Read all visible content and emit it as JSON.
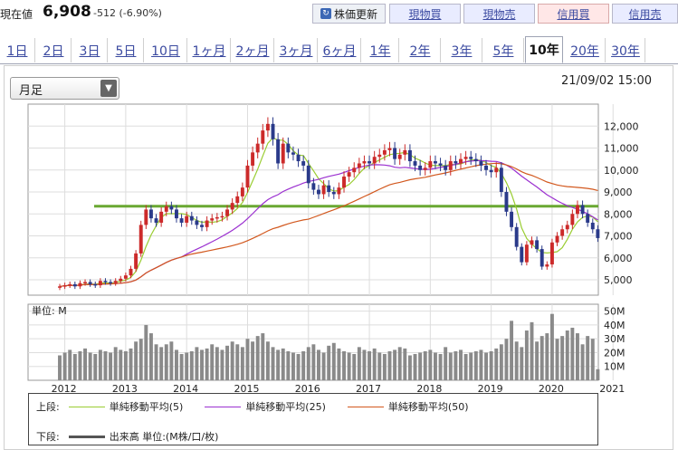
{
  "quote": {
    "label": "現在値",
    "price": "6,908",
    "change": "-512 (-6.90%)"
  },
  "buttons": {
    "refresh": "株価更新",
    "spot_buy": "現物買",
    "spot_sell": "現物売",
    "margin_buy": "信用買",
    "margin_sell": "信用売"
  },
  "tabs": [
    "1日",
    "2日",
    "3日",
    "5日",
    "10日",
    "1ヶ月",
    "2ヶ月",
    "3ヶ月",
    "6ヶ月",
    "1年",
    "2年",
    "3年",
    "5年",
    "10年",
    "20年",
    "30年"
  ],
  "active_tab": "10年",
  "period_select": "月足",
  "datetime": "21/09/02 15:00",
  "volume_unit": "単位: M",
  "colors": {
    "up": "#cc2a2a",
    "down": "#2a3a8a",
    "ma5": "#9acd32",
    "ma25": "#9b30d0",
    "ma50": "#d2581e",
    "resistance": "#6aa832",
    "volume": "#8a8a8a"
  },
  "legend": {
    "upper_label": "上段:",
    "lower_label": "下段:",
    "ma5": "単純移動平均(5)",
    "ma25": "単純移動平均(25)",
    "ma50": "単純移動平均(50)",
    "volume": "出来高 単位:(M株/口/枚)"
  },
  "chart_data": {
    "type": "candlestick",
    "interval": "monthly",
    "x_axis_labels": [
      "2012",
      "2013",
      "2014",
      "2015",
      "2016",
      "2017",
      "2018",
      "2019",
      "2020",
      "2021"
    ],
    "price_ticks": [
      5000,
      6000,
      7000,
      8000,
      9000,
      10000,
      11000,
      12000
    ],
    "price_tick_labels": [
      "5,000",
      "6,000",
      "7,000",
      "8,000",
      "9,000",
      "10,000",
      "11,000",
      "12,000"
    ],
    "price_range": [
      4300,
      13000
    ],
    "resistance_level": 8350,
    "volume_ticks": [
      10,
      20,
      30,
      40,
      50
    ],
    "volume_tick_labels": [
      "10M",
      "20M",
      "30M",
      "40M",
      "50M"
    ],
    "volume_range": [
      0,
      55
    ],
    "closes": [
      4700,
      4750,
      4800,
      4700,
      4850,
      4900,
      4800,
      4750,
      4950,
      4900,
      4850,
      4950,
      5050,
      5200,
      5500,
      6200,
      7500,
      8200,
      7800,
      7600,
      8100,
      8350,
      8200,
      7800,
      7600,
      7900,
      7700,
      7500,
      7400,
      7700,
      7800,
      7850,
      7900,
      8200,
      8500,
      8800,
      9200,
      10200,
      10800,
      11200,
      11800,
      12100,
      11400,
      10300,
      11200,
      10800,
      10700,
      10400,
      10200,
      9400,
      9100,
      8900,
      9300,
      9000,
      8900,
      9200,
      9700,
      9900,
      10100,
      10300,
      10400,
      10300,
      10600,
      10700,
      10900,
      11000,
      10500,
      10700,
      10900,
      10400,
      10200,
      10000,
      10100,
      10400,
      10300,
      10200,
      10000,
      10400,
      10300,
      10500,
      10600,
      10500,
      10400,
      10200,
      10000,
      9900,
      10100,
      9000,
      8100,
      7400,
      6500,
      5800,
      6600,
      6800,
      6400,
      5600,
      5700,
      6700,
      7000,
      7300,
      7500,
      8000,
      8400,
      8000,
      7600,
      7300,
      6900
    ],
    "opens": [
      4650,
      4700,
      4750,
      4800,
      4700,
      4850,
      4900,
      4800,
      4750,
      4950,
      4900,
      4850,
      4950,
      5050,
      5200,
      5500,
      6200,
      7500,
      8200,
      7800,
      7600,
      8100,
      8350,
      8200,
      7800,
      7600,
      7900,
      7700,
      7500,
      7400,
      7700,
      7800,
      7850,
      7900,
      8200,
      8500,
      8800,
      9200,
      10200,
      10800,
      11200,
      11800,
      12100,
      11400,
      10300,
      11200,
      10800,
      10700,
      10400,
      10200,
      9400,
      9100,
      8900,
      9300,
      9000,
      8900,
      9200,
      9700,
      9900,
      10100,
      10300,
      10400,
      10300,
      10600,
      10700,
      10900,
      11000,
      10500,
      10700,
      10900,
      10400,
      10200,
      10000,
      10100,
      10400,
      10300,
      10200,
      10000,
      10400,
      10300,
      10500,
      10600,
      10500,
      10400,
      10200,
      10000,
      9900,
      10100,
      9000,
      8100,
      7400,
      6500,
      5800,
      6600,
      6800,
      6400,
      5600,
      5700,
      6700,
      7000,
      7300,
      7500,
      8000,
      8400,
      8000,
      7600,
      7300
    ],
    "volumes": [
      18,
      20,
      22,
      19,
      21,
      23,
      20,
      19,
      22,
      21,
      20,
      24,
      22,
      21,
      23,
      28,
      30,
      40,
      34,
      26,
      24,
      26,
      28,
      22,
      19,
      20,
      21,
      24,
      22,
      23,
      26,
      24,
      22,
      25,
      28,
      26,
      24,
      30,
      28,
      32,
      34,
      28,
      24,
      22,
      23,
      21,
      20,
      19,
      21,
      24,
      26,
      22,
      20,
      25,
      27,
      23,
      21,
      20,
      19,
      24,
      22,
      21,
      23,
      20,
      19,
      21,
      22,
      24,
      23,
      18,
      19,
      20,
      21,
      22,
      20,
      19,
      24,
      20,
      21,
      22,
      19,
      20,
      21,
      22,
      20,
      21,
      23,
      26,
      30,
      43,
      28,
      24,
      36,
      42,
      28,
      32,
      34,
      48,
      30,
      32,
      36,
      38,
      34,
      26,
      32,
      30,
      8
    ]
  }
}
